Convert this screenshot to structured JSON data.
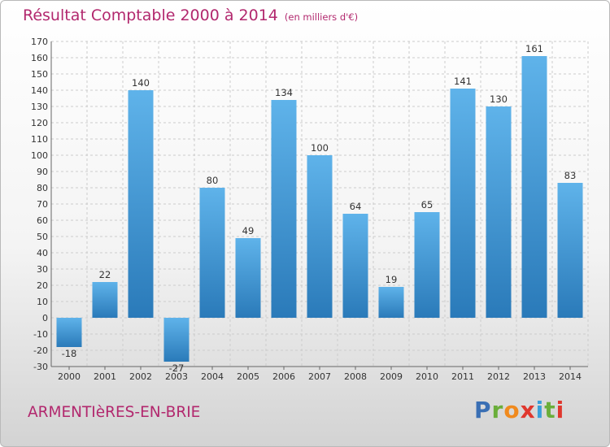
{
  "header": {
    "title": "Résultat Comptable 2000 à 2014",
    "subtitle": "(en milliers d'€)"
  },
  "footer": {
    "commune": "ARMENTIèRES-EN-BRIE",
    "logo": [
      "P",
      "r",
      "o",
      "x",
      "i",
      "t",
      "i"
    ]
  },
  "colors": {
    "title": "#b2286e",
    "bar_light": "#5fb3ea",
    "bar_dark": "#2a7ab9",
    "grid": "#cccccc",
    "logo": [
      "#3a6fb4",
      "#6aae3a",
      "#f08a1e",
      "#e0372d",
      "#3a9fd8",
      "#6aae3a",
      "#e0372d"
    ]
  },
  "chart_data": {
    "type": "bar",
    "title": "Résultat Comptable 2000 à 2014",
    "ylabel": "en milliers d'€",
    "xlabel": "",
    "categories": [
      "2000",
      "2001",
      "2002",
      "2003",
      "2004",
      "2005",
      "2006",
      "2007",
      "2008",
      "2009",
      "2010",
      "2011",
      "2012",
      "2013",
      "2014"
    ],
    "values": [
      -18,
      22,
      140,
      -27,
      80,
      49,
      134,
      100,
      64,
      19,
      65,
      141,
      130,
      161,
      83
    ],
    "ylim": [
      -30,
      170
    ],
    "yticks": [
      -30,
      -20,
      -10,
      0,
      10,
      20,
      30,
      40,
      50,
      60,
      70,
      80,
      90,
      100,
      110,
      120,
      130,
      140,
      150,
      160,
      170
    ],
    "grid": true,
    "legend": "none"
  }
}
